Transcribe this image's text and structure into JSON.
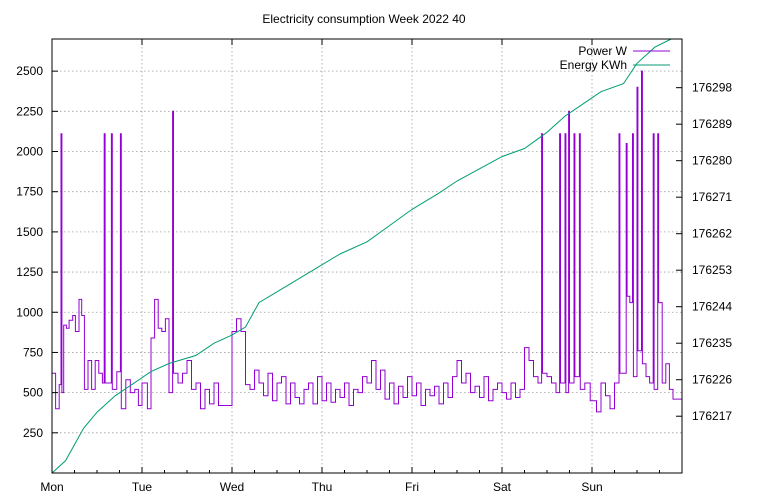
{
  "chart_data": {
    "type": "line",
    "title": "Electricity consumption Week 2022 40",
    "x_tick_labels": [
      "Mon",
      "Tue",
      "Wed",
      "Thu",
      "Fri",
      "Sat",
      "Sun"
    ],
    "xlim_days": [
      0,
      7
    ],
    "y_left": {
      "ylim": [
        0,
        2700
      ],
      "ticks": [
        250,
        500,
        750,
        1000,
        1250,
        1500,
        1750,
        2000,
        2250,
        2500
      ]
    },
    "y_right": {
      "ylim": [
        176203,
        176310
      ],
      "ticks": [
        176217,
        176226,
        176235,
        176244,
        176253,
        176262,
        176271,
        176280,
        176289,
        176298
      ]
    },
    "grid": true,
    "legend_position": "top-right",
    "series": [
      {
        "name": "Power W",
        "axis": "left",
        "color": "#9400d3",
        "style": "steps",
        "points": [
          [
            0.0,
            620
          ],
          [
            0.04,
            400
          ],
          [
            0.08,
            550
          ],
          [
            0.1,
            2110
          ],
          [
            0.11,
            500
          ],
          [
            0.13,
            920
          ],
          [
            0.16,
            900
          ],
          [
            0.19,
            950
          ],
          [
            0.23,
            980
          ],
          [
            0.26,
            880
          ],
          [
            0.3,
            1080
          ],
          [
            0.33,
            980
          ],
          [
            0.36,
            520
          ],
          [
            0.4,
            700
          ],
          [
            0.44,
            520
          ],
          [
            0.48,
            700
          ],
          [
            0.52,
            620
          ],
          [
            0.56,
            560
          ],
          [
            0.58,
            2110
          ],
          [
            0.59,
            560
          ],
          [
            0.66,
            2110
          ],
          [
            0.67,
            520
          ],
          [
            0.72,
            630
          ],
          [
            0.76,
            2110
          ],
          [
            0.77,
            400
          ],
          [
            0.82,
            580
          ],
          [
            0.87,
            500
          ],
          [
            0.92,
            520
          ],
          [
            0.96,
            420
          ],
          [
            1.0,
            560
          ],
          [
            1.06,
            400
          ],
          [
            1.1,
            840
          ],
          [
            1.14,
            1080
          ],
          [
            1.18,
            900
          ],
          [
            1.22,
            880
          ],
          [
            1.26,
            960
          ],
          [
            1.3,
            500
          ],
          [
            1.34,
            2250
          ],
          [
            1.35,
            620
          ],
          [
            1.4,
            560
          ],
          [
            1.45,
            620
          ],
          [
            1.5,
            700
          ],
          [
            1.55,
            520
          ],
          [
            1.6,
            560
          ],
          [
            1.65,
            400
          ],
          [
            1.7,
            520
          ],
          [
            1.75,
            430
          ],
          [
            1.8,
            560
          ],
          [
            1.85,
            420
          ],
          [
            1.9,
            420
          ],
          [
            1.95,
            420
          ],
          [
            2.0,
            880
          ],
          [
            2.05,
            960
          ],
          [
            2.1,
            880
          ],
          [
            2.15,
            550
          ],
          [
            2.2,
            520
          ],
          [
            2.25,
            640
          ],
          [
            2.3,
            560
          ],
          [
            2.35,
            480
          ],
          [
            2.4,
            620
          ],
          [
            2.45,
            450
          ],
          [
            2.5,
            560
          ],
          [
            2.55,
            600
          ],
          [
            2.6,
            430
          ],
          [
            2.65,
            560
          ],
          [
            2.7,
            470
          ],
          [
            2.75,
            430
          ],
          [
            2.8,
            520
          ],
          [
            2.85,
            560
          ],
          [
            2.9,
            430
          ],
          [
            2.95,
            600
          ],
          [
            3.0,
            450
          ],
          [
            3.05,
            560
          ],
          [
            3.1,
            440
          ],
          [
            3.15,
            520
          ],
          [
            3.2,
            470
          ],
          [
            3.25,
            560
          ],
          [
            3.3,
            420
          ],
          [
            3.35,
            520
          ],
          [
            3.4,
            500
          ],
          [
            3.45,
            600
          ],
          [
            3.5,
            560
          ],
          [
            3.55,
            700
          ],
          [
            3.6,
            520
          ],
          [
            3.65,
            640
          ],
          [
            3.7,
            460
          ],
          [
            3.75,
            560
          ],
          [
            3.8,
            430
          ],
          [
            3.85,
            540
          ],
          [
            3.9,
            470
          ],
          [
            3.95,
            600
          ],
          [
            4.0,
            480
          ],
          [
            4.05,
            560
          ],
          [
            4.1,
            420
          ],
          [
            4.15,
            520
          ],
          [
            4.2,
            480
          ],
          [
            4.25,
            540
          ],
          [
            4.3,
            430
          ],
          [
            4.35,
            560
          ],
          [
            4.4,
            470
          ],
          [
            4.45,
            600
          ],
          [
            4.5,
            700
          ],
          [
            4.55,
            560
          ],
          [
            4.6,
            620
          ],
          [
            4.65,
            500
          ],
          [
            4.7,
            540
          ],
          [
            4.75,
            470
          ],
          [
            4.8,
            600
          ],
          [
            4.85,
            450
          ],
          [
            4.9,
            520
          ],
          [
            4.95,
            560
          ],
          [
            5.0,
            500
          ],
          [
            5.05,
            460
          ],
          [
            5.1,
            560
          ],
          [
            5.15,
            470
          ],
          [
            5.2,
            520
          ],
          [
            5.25,
            780
          ],
          [
            5.3,
            700
          ],
          [
            5.35,
            600
          ],
          [
            5.4,
            560
          ],
          [
            5.44,
            2110
          ],
          [
            5.45,
            620
          ],
          [
            5.5,
            600
          ],
          [
            5.55,
            560
          ],
          [
            5.6,
            500
          ],
          [
            5.64,
            2110
          ],
          [
            5.65,
            560
          ],
          [
            5.7,
            2110
          ],
          [
            5.71,
            500
          ],
          [
            5.74,
            2250
          ],
          [
            5.75,
            560
          ],
          [
            5.8,
            2110
          ],
          [
            5.81,
            600
          ],
          [
            5.86,
            2110
          ],
          [
            5.87,
            520
          ],
          [
            5.92,
            560
          ],
          [
            5.98,
            450
          ],
          [
            6.05,
            380
          ],
          [
            6.1,
            560
          ],
          [
            6.15,
            480
          ],
          [
            6.2,
            400
          ],
          [
            6.25,
            560
          ],
          [
            6.3,
            2110
          ],
          [
            6.31,
            620
          ],
          [
            6.38,
            2050
          ],
          [
            6.39,
            1100
          ],
          [
            6.42,
            1060
          ],
          [
            6.45,
            2110
          ],
          [
            6.46,
            600
          ],
          [
            6.5,
            2400
          ],
          [
            6.51,
            760
          ],
          [
            6.55,
            2500
          ],
          [
            6.56,
            680
          ],
          [
            6.6,
            600
          ],
          [
            6.64,
            560
          ],
          [
            6.68,
            2110
          ],
          [
            6.69,
            520
          ],
          [
            6.73,
            2110
          ],
          [
            6.74,
            1060
          ],
          [
            6.78,
            560
          ],
          [
            6.82,
            680
          ],
          [
            6.86,
            520
          ],
          [
            6.9,
            460
          ],
          [
            7.0,
            460
          ]
        ]
      },
      {
        "name": "Energy KWh",
        "axis": "right",
        "color": "#009e73",
        "style": "line",
        "points": [
          [
            0.0,
            176203
          ],
          [
            0.15,
            176206
          ],
          [
            0.35,
            176214
          ],
          [
            0.5,
            176218
          ],
          [
            0.7,
            176222
          ],
          [
            0.9,
            176225
          ],
          [
            1.1,
            176228
          ],
          [
            1.3,
            176230
          ],
          [
            1.6,
            176232
          ],
          [
            1.8,
            176235
          ],
          [
            2.0,
            176237
          ],
          [
            2.15,
            176239
          ],
          [
            2.3,
            176245
          ],
          [
            2.6,
            176249
          ],
          [
            2.9,
            176253
          ],
          [
            3.2,
            176257
          ],
          [
            3.5,
            176260
          ],
          [
            3.75,
            176264
          ],
          [
            4.0,
            176268
          ],
          [
            4.3,
            176272
          ],
          [
            4.5,
            176275
          ],
          [
            4.75,
            176278
          ],
          [
            5.0,
            176281
          ],
          [
            5.25,
            176283
          ],
          [
            5.5,
            176287
          ],
          [
            5.7,
            176291
          ],
          [
            5.9,
            176294
          ],
          [
            6.1,
            176297
          ],
          [
            6.35,
            176299
          ],
          [
            6.5,
            176304
          ],
          [
            6.7,
            176308
          ],
          [
            6.88,
            176310
          ]
        ]
      }
    ]
  }
}
